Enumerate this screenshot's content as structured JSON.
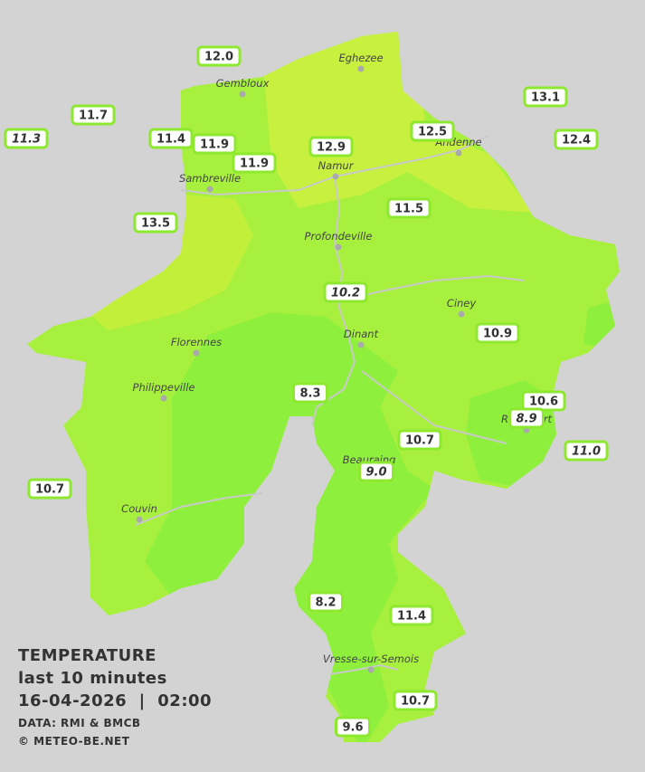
{
  "map": {
    "cities": [
      "Eghezee",
      "Gembloux",
      "Andenne",
      "Namur",
      "Sambreville",
      "Profondeville",
      "Ciney",
      "Dinant",
      "Florennes",
      "Philippeville",
      "Rochefort",
      "Beauraing",
      "Couvin",
      "Vresse-sur-Semois"
    ],
    "stations": [
      {
        "label": "12.0",
        "italic": false
      },
      {
        "label": "11.7",
        "italic": false
      },
      {
        "label": "11.3",
        "italic": true
      },
      {
        "label": "11.4",
        "italic": false
      },
      {
        "label": "11.9",
        "italic": false
      },
      {
        "label": "11.9",
        "italic": false
      },
      {
        "label": "12.9",
        "italic": false
      },
      {
        "label": "12.5",
        "italic": false
      },
      {
        "label": "13.1",
        "italic": false
      },
      {
        "label": "12.4",
        "italic": false
      },
      {
        "label": "11.5",
        "italic": false
      },
      {
        "label": "13.5",
        "italic": false
      },
      {
        "label": "10.2",
        "italic": true
      },
      {
        "label": "10.9",
        "italic": false
      },
      {
        "label": "8.3",
        "italic": false
      },
      {
        "label": "10.6",
        "italic": false
      },
      {
        "label": "8.9",
        "italic": true
      },
      {
        "label": "10.7",
        "italic": false
      },
      {
        "label": "11.0",
        "italic": true
      },
      {
        "label": "9.0",
        "italic": true
      },
      {
        "label": "10.7",
        "italic": false
      },
      {
        "label": "8.2",
        "italic": false
      },
      {
        "label": "11.4",
        "italic": false
      },
      {
        "label": "10.7",
        "italic": false
      },
      {
        "label": "9.6",
        "italic": false
      }
    ]
  },
  "legend": {
    "title": "TEMPERATURE",
    "subtitle": "last 10 minutes",
    "datetime": "16-04-2026  |  02:00",
    "source": "DATA: RMI & BMCB",
    "credit": "© METEO-BE.NET"
  }
}
